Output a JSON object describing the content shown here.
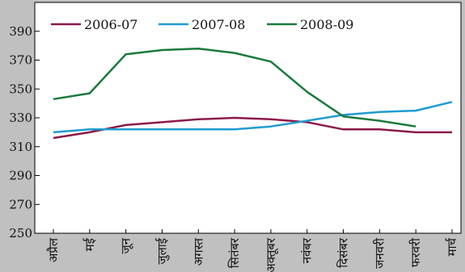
{
  "chart_data": {
    "type": "line",
    "categories": [
      "अप्रैल",
      "मई",
      "जून",
      "जुलाई",
      "अगस्त",
      "सितंबर",
      "अक्तूबर",
      "नवंबर",
      "दिसंबर",
      "जनवरी",
      "फरवरी",
      "मार्च"
    ],
    "series": [
      {
        "name": "2006-07",
        "color": "#8b1a4a",
        "values": [
          316,
          320,
          325,
          327,
          329,
          330,
          329,
          327,
          322,
          322,
          320,
          320
        ]
      },
      {
        "name": "2007-08",
        "color": "#1f9bd1",
        "values": [
          320,
          322,
          322,
          322,
          322,
          322,
          324,
          328,
          332,
          334,
          335,
          341
        ]
      },
      {
        "name": "2008-09",
        "color": "#1a7a3c",
        "values": [
          343,
          347,
          374,
          377,
          378,
          375,
          369,
          348,
          331,
          328,
          324,
          null
        ]
      }
    ],
    "ylim": [
      250,
      410
    ],
    "yticks": [
      250,
      270,
      290,
      310,
      330,
      350,
      370,
      390
    ],
    "legend_position": "top",
    "grid": false
  }
}
